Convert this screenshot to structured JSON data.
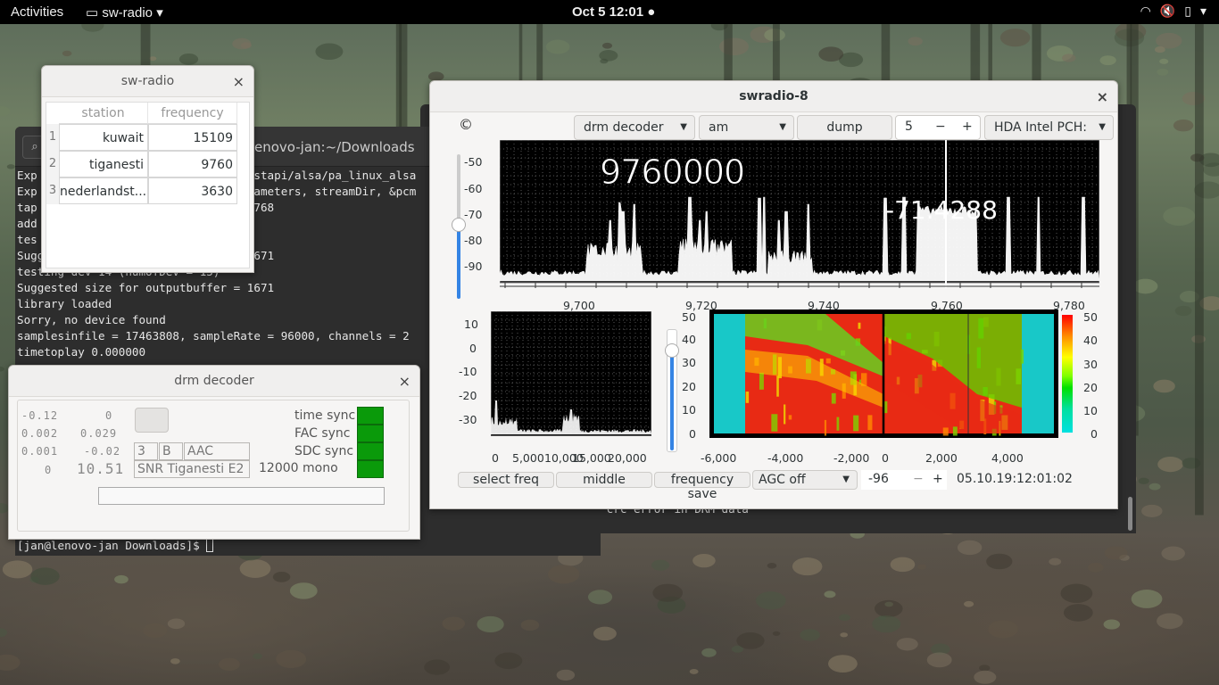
{
  "topbar": {
    "activities": "Activities",
    "app_menu": "sw-radio",
    "clock": "Oct 5  12:01",
    "icons": [
      "wifi-icon",
      "volume-muted-icon",
      "battery-icon",
      "system-menu-arrow-icon"
    ]
  },
  "terminal": {
    "title": "enovo-jan:~/Downloads",
    "lines": [
      "Exp                               ostapi/alsa/pa_linux_alsa",
      "Exp                               rameters, streamDir, &pcm",
      "tap                               1768",
      "add",
      "tes",
      "Sugg                              1671",
      "testing dev 14 (numofDev = 15)",
      "Suggested size for outputbuffer = 1671",
      "library loaded",
      "Sorry, no device found",
      "samplesinfile = 17463808, sampleRate = 96000, channels = 2",
      "timetoplay 0.000000"
    ],
    "prompt": "[jan@lenovo-jan Downloads]$ ",
    "hidden_line": "warning crc error in DRM data"
  },
  "stations_window": {
    "title": "sw-radio",
    "columns": [
      "station",
      "frequency"
    ],
    "rows": [
      {
        "n": "1",
        "station": "kuwait",
        "frequency": "15109"
      },
      {
        "n": "2",
        "station": "tiganesti",
        "frequency": "9760"
      },
      {
        "n": "3",
        "station": "nederlandst...",
        "frequency": "3630"
      }
    ]
  },
  "drm_window": {
    "title": "drm decoder",
    "lcd": {
      "a1": "-0.12",
      "a2": "0",
      "b1": "0.002",
      "b2": "0.029",
      "c1": "0.001",
      "c2": "-0.02",
      "d1": "0",
      "d2": "10.51"
    },
    "cells": {
      "mode": "3",
      "spectrum": "B",
      "codec": "AAC",
      "label": "SNR Tiganesti E2"
    },
    "audio_info": "12000 mono",
    "sync_labels": [
      "time sync",
      "FAC sync",
      "SDC sync"
    ],
    "sync_color": "#0a9a0a"
  },
  "swradio": {
    "title": "swradio-8",
    "copyright": "©",
    "decoder_select": "drm decoder",
    "mode_select": "am",
    "dump_button": "dump",
    "spin_value": "5",
    "spin_minus": "−",
    "spin_plus": "+",
    "device_select": "HDA Intel PCH:",
    "freq_display": "9760000",
    "signal_display": "-71.4288",
    "spectrum_y_ticks": [
      "-50",
      "-60",
      "-70",
      "-80",
      "-90"
    ],
    "spectrum_x_ticks": [
      "9,700",
      "9,720",
      "9,740",
      "9,760",
      "9,780"
    ],
    "small_y_ticks": [
      "10",
      "0",
      "-10",
      "-20",
      "-30"
    ],
    "small_x_ticks": [
      "0",
      "5,000",
      "10,000",
      "15,000",
      "20,000"
    ],
    "wf_y_ticks": [
      "50",
      "40",
      "30",
      "20",
      "10",
      "0"
    ],
    "wf_x_ticks": [
      "-6,000",
      "-4,000",
      "-2,000",
      "0",
      "2,000",
      "4,000"
    ],
    "colorbar_ticks": [
      "50",
      "40",
      "30",
      "20",
      "10",
      "0"
    ],
    "select_freq": "select freq",
    "middle": "middle",
    "frequency_save": "frequency save",
    "agc_select": "AGC off",
    "agc_value": "-96",
    "agc_minus": "−",
    "agc_plus": "+",
    "timestamp": "05.10.19:12:01:02"
  }
}
